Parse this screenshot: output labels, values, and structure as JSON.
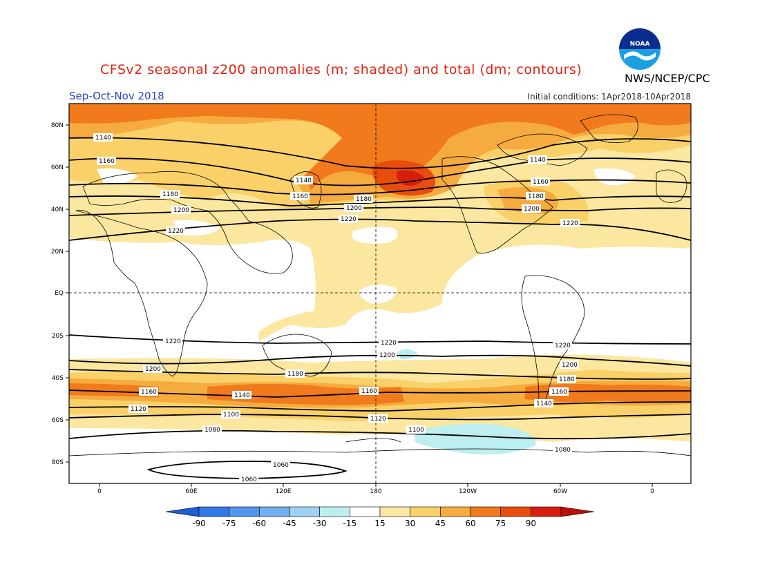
{
  "header": {
    "title": "CFSv2 seasonal z200 anomalies (m; shaded) and total (dm; contours)",
    "agency": "NWS/NCEP/CPC",
    "season": "Sep-Oct-Nov 2018",
    "initial_conditions": "Initial conditions: 1Apr2018-10Apr2018"
  },
  "logo": {
    "text": "NOAA",
    "icon": "noaa-logo"
  },
  "axes": {
    "lat_ticks": [
      "80N",
      "60N",
      "40N",
      "20N",
      "EQ",
      "20S",
      "40S",
      "60S",
      "80S"
    ],
    "lon_ticks": [
      "0",
      "60E",
      "120E",
      "180",
      "120W",
      "60W",
      "0"
    ]
  },
  "colorbar": {
    "labels": [
      "-90",
      "-75",
      "-60",
      "-45",
      "-30",
      "-15",
      "15",
      "30",
      "45",
      "60",
      "75",
      "90"
    ],
    "colors": [
      "#1a5fd8",
      "#2f7ae6",
      "#4f95ec",
      "#73b0f0",
      "#9dd2f4",
      "#bdeef0",
      "#ffffff",
      "#fbe7a0",
      "#f9d168",
      "#f6ab3e",
      "#f07a1c",
      "#e84d0e",
      "#d61e0a",
      "#b81208"
    ]
  },
  "contour_labels": [
    "1140",
    "1160",
    "1180",
    "1200",
    "1220",
    "1140",
    "1160",
    "1180",
    "1200",
    "1220",
    "1140",
    "1160",
    "1180",
    "1200",
    "1220",
    "1220",
    "1200",
    "1160",
    "1140",
    "1120",
    "1100",
    "1080",
    "1060",
    "1060",
    "1220",
    "1200",
    "1180",
    "1160",
    "1120",
    "1100",
    "1220",
    "1200",
    "1180",
    "1160",
    "1140",
    "1080"
  ]
}
